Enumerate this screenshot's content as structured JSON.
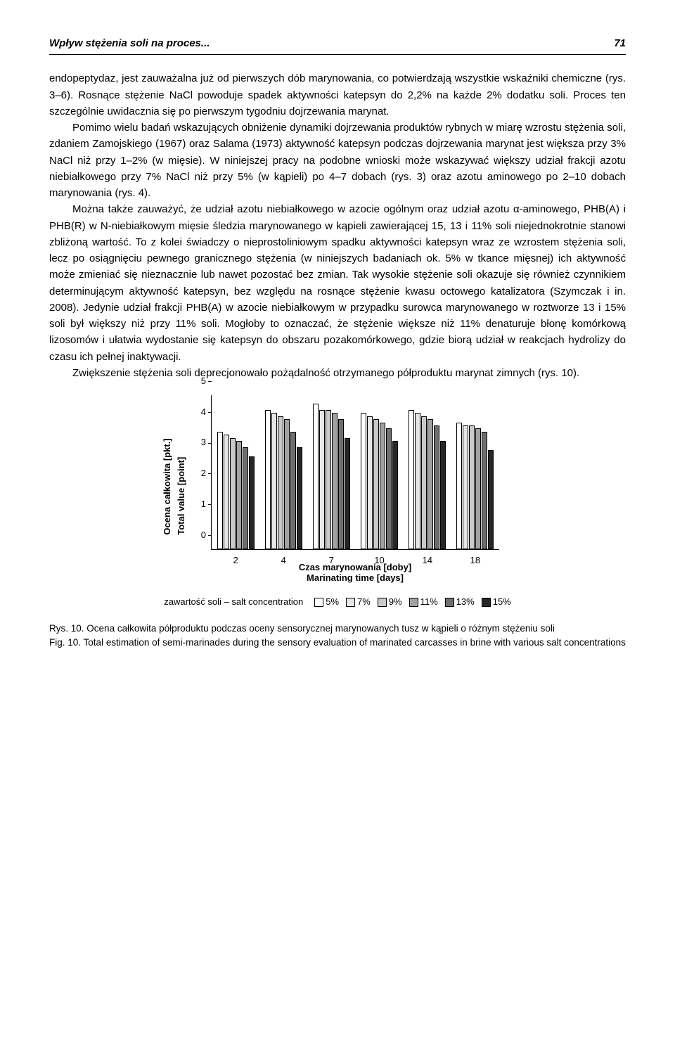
{
  "header": {
    "running_title": "Wpływ stężenia soli na proces...",
    "page_number": "71"
  },
  "paragraphs": [
    "endopeptydaz, jest zauważalna już od pierwszych dób marynowania, co potwierdzają wszystkie wskaźniki chemiczne (rys. 3–6). Rosnące stężenie NaCl powoduje spadek aktywności katepsyn do 2,2% na każde 2% dodatku soli. Proces ten szczególnie uwidacznia się po pierwszym tygodniu dojrzewania marynat.",
    "Pomimo wielu badań wskazujących obniżenie dynamiki dojrzewania produktów rybnych w miarę wzrostu stężenia soli, zdaniem Zamojskiego (1967) oraz Salama (1973) aktywność katepsyn podczas dojrzewania marynat jest większa przy 3% NaCl niż przy 1–2% (w mięsie). W niniejszej pracy na podobne wnioski może wskazywać większy udział frakcji azotu niebiałkowego przy 7% NaCl niż przy 5% (w kąpieli) po 4–7 dobach (rys. 3) oraz azotu aminowego po 2–10 dobach marynowania (rys. 4).",
    "Można także zauważyć, że udział azotu niebiałkowego w azocie ogólnym oraz udział azotu α-aminowego, PHB(A) i PHB(R) w N-niebiałkowym mięsie śledzia marynowanego w kąpieli zawierającej 15, 13 i 11% soli niejednokrotnie stanowi zbliżoną wartość. To z kolei świadczy o nieprostoliniowym spadku aktywności katepsyn wraz ze wzrostem stężenia soli, lecz po osiągnięciu pewnego granicznego stężenia (w niniejszych badaniach ok. 5% w tkance mięsnej) ich aktywność może zmieniać się nieznacznie lub nawet pozostać bez zmian. Tak wysokie stężenie soli okazuje się również czynnikiem determinującym aktywność katepsyn, bez względu na rosnące stężenie kwasu octowego katalizatora (Szymczak i in. 2008). Jedynie udział frakcji PHB(A) w azocie niebiałkowym w przypadku surowca marynowanego w roztworze 13 i 15% soli był większy niż przy 11% soli. Mogłoby to oznaczać, że stężenie większe niż 11% denaturuje błonę komórkową lizosomów i ułatwia  wydostanie się katepsyn do obszaru pozakomórkowego, gdzie biorą udział w reakcjach hydrolizy do czasu ich pełnej inaktywacji.",
    "Zwiększenie stężenia soli deprecjonowało pożądalność otrzymanego półproduktu marynat zimnych (rys. 10)."
  ],
  "chart": {
    "type": "grouped-bar",
    "ylabel": "Ocena całkowita [pkt.]\nTotal value [point]",
    "xlabel": "Czas marynowania [doby]\nMarinating time [days]",
    "ylim": [
      0,
      5
    ],
    "ytick_step": 1,
    "categories": [
      "2",
      "4",
      "7",
      "10",
      "14",
      "18"
    ],
    "series": [
      {
        "name": "5%",
        "color": "#ffffff"
      },
      {
        "name": "7%",
        "color": "#e6e6e6"
      },
      {
        "name": "9%",
        "color": "#c9c9c9"
      },
      {
        "name": "11%",
        "color": "#a2a2a2"
      },
      {
        "name": "13%",
        "color": "#6f6f6f"
      },
      {
        "name": "15%",
        "color": "#262626"
      }
    ],
    "values": [
      [
        3.8,
        3.7,
        3.6,
        3.5,
        3.3,
        3.0
      ],
      [
        4.5,
        4.4,
        4.3,
        4.2,
        3.8,
        3.3
      ],
      [
        4.7,
        4.5,
        4.5,
        4.4,
        4.2,
        3.6
      ],
      [
        4.4,
        4.3,
        4.2,
        4.1,
        3.9,
        3.5
      ],
      [
        4.5,
        4.4,
        4.3,
        4.2,
        4.0,
        3.5
      ],
      [
        4.1,
        4.0,
        4.0,
        3.9,
        3.8,
        3.2
      ]
    ],
    "legend_prefix": "zawartość soli – salt concentration"
  },
  "caption": {
    "rys_label": "Rys. 10.",
    "rys_text": "Ocena całkowita półproduktu podczas oceny sensorycznej marynowanych tusz w kąpieli o różnym stężeniu soli",
    "fig_label": "Fig. 10.",
    "fig_text": "Total estimation of semi-marinades during the sensory evaluation of marinated carcasses in brine with various salt concentrations"
  }
}
